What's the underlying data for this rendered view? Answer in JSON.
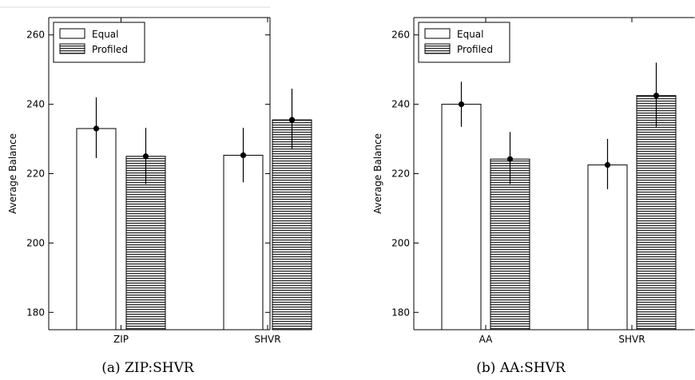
{
  "chart_data": [
    {
      "type": "bar",
      "caption": "(a) ZIP:SHVR",
      "ylabel": "Average Balance",
      "xlabel": "",
      "categories": [
        "ZIP",
        "SHVR"
      ],
      "ylim": [
        175,
        265
      ],
      "yticks": [
        "180",
        "200",
        "220",
        "240",
        "260"
      ],
      "legend_position": "top-left",
      "series": [
        {
          "name": "Equal",
          "fill": "white",
          "values": [
            233,
            225.3
          ],
          "err_low": [
            224.5,
            217.5
          ],
          "err_high": [
            242,
            233.2
          ]
        },
        {
          "name": "Profiled",
          "fill": "hatched",
          "values": [
            225,
            235.5
          ],
          "err_low": [
            217,
            227
          ],
          "err_high": [
            233.2,
            244.5
          ]
        }
      ]
    },
    {
      "type": "bar",
      "caption": "(b) AA:SHVR",
      "ylabel": "Average Balance",
      "xlabel": "",
      "categories": [
        "AA",
        "SHVR"
      ],
      "ylim": [
        175,
        265
      ],
      "yticks": [
        "180",
        "200",
        "220",
        "240",
        "260"
      ],
      "legend_position": "top-left",
      "series": [
        {
          "name": "Equal",
          "fill": "white",
          "values": [
            240,
            222.5
          ],
          "err_low": [
            233.5,
            215.5
          ],
          "err_high": [
            246.5,
            230
          ]
        },
        {
          "name": "Profiled",
          "fill": "hatched",
          "values": [
            224.2,
            242.5
          ],
          "err_low": [
            217,
            233.5
          ],
          "err_high": [
            232,
            252
          ]
        }
      ]
    }
  ],
  "colors": {
    "axis": "#000000",
    "bar_edge": "#000000",
    "hatch": "#000000",
    "bar_fill": "#ffffff",
    "error_bar": "#000000"
  }
}
